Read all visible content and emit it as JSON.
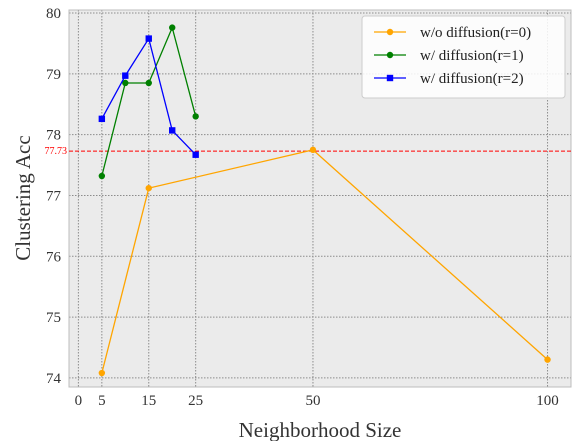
{
  "chart_data": {
    "type": "line",
    "title": "",
    "xlabel": "Neighborhood Size",
    "ylabel": "Clustering Acc",
    "xlim": [
      -2,
      105
    ],
    "ylim": [
      73.85,
      80.05
    ],
    "xticks": [
      0,
      5,
      15,
      25,
      50,
      100
    ],
    "xtick_labels": [
      "0",
      "5",
      "15",
      "25",
      "50",
      "100"
    ],
    "yticks": [
      74,
      75,
      76,
      77,
      78,
      79,
      80
    ],
    "ytick_labels": [
      "74",
      "75",
      "76",
      "77",
      "78",
      "79",
      "80"
    ],
    "grid": true,
    "legend_position": "top-right",
    "reference_line": {
      "value": 77.73,
      "label": "77.73",
      "color": "#ff0000",
      "style": "dashed"
    },
    "series": [
      {
        "name": "w/o diffusion(r=0)",
        "color": "#ffa500",
        "marker": "circle",
        "x": [
          5,
          15,
          50,
          100
        ],
        "y": [
          74.08,
          77.12,
          77.75,
          74.3
        ]
      },
      {
        "name": "w/ diffusion(r=1)",
        "color": "#008000",
        "marker": "circle",
        "x": [
          5,
          10,
          15,
          20,
          25
        ],
        "y": [
          77.32,
          78.85,
          78.85,
          79.76,
          78.3
        ]
      },
      {
        "name": "w/ diffusion(r=2)",
        "color": "#0000ff",
        "marker": "square",
        "x": [
          5,
          10,
          15,
          20,
          25
        ],
        "y": [
          78.26,
          78.97,
          79.58,
          78.07,
          77.67
        ]
      }
    ]
  }
}
